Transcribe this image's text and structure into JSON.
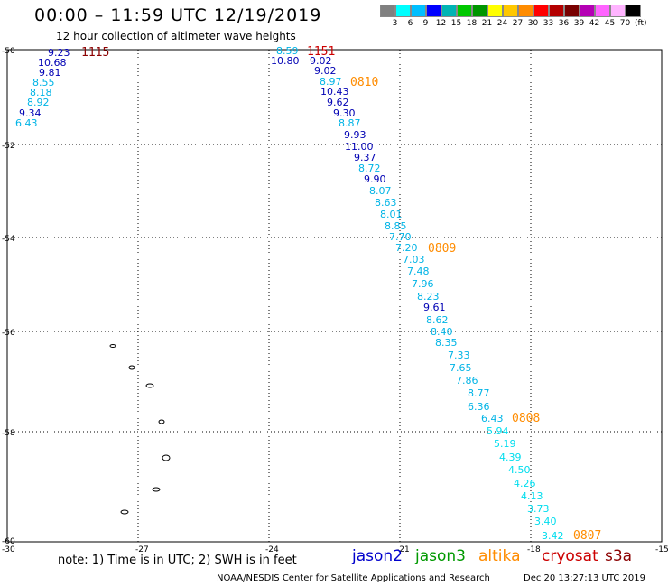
{
  "title": "00:00 – 11:59 UTC 12/19/2019",
  "subtitle": "12 hour collection of altimeter wave heights",
  "legend": {
    "unit": "(ft)",
    "colors": [
      "#808080",
      "#00ffff",
      "#00bfff",
      "#0000ff",
      "#00b4b4",
      "#00c800",
      "#009600",
      "#ffff00",
      "#ffc800",
      "#ff8c00",
      "#ff0000",
      "#b40000",
      "#780000",
      "#b400b4",
      "#ff64ff",
      "#ffb4ff",
      "#000000"
    ],
    "labels": [
      "3",
      "6",
      "9",
      "12",
      "15",
      "18",
      "21",
      "24",
      "27",
      "30",
      "33",
      "36",
      "39",
      "42",
      "45",
      "70"
    ]
  },
  "axes": {
    "x_ticks": [
      "-30",
      "-27",
      "-24",
      "-21",
      "-18",
      "-15"
    ],
    "y_ticks": [
      "-50",
      "-52",
      "-54",
      "-56",
      "-58",
      "-60"
    ]
  },
  "tracks": [
    {
      "pass_time": "1115",
      "values": [
        "9.23",
        "10.68",
        "9.81",
        "8.55",
        "8.18",
        "8.92",
        "9.34",
        "6.43"
      ]
    },
    {
      "pass_time": "1151",
      "values": [
        "8.59",
        "10.80"
      ]
    },
    {
      "pass_time": "0810",
      "values": [
        "9.02",
        "9.02",
        "8.97",
        "10.43",
        "9.62",
        "9.30",
        "8.87",
        "9.93",
        "11.00",
        "9.37",
        "8.72",
        "9.90",
        "8.07",
        "8.63",
        "8.01",
        "8.85",
        "7.70",
        "7.20"
      ]
    },
    {
      "pass_time": "0809",
      "values": [
        "7.03",
        "7.48",
        "7.96",
        "8.23",
        "9.61",
        "8.62",
        "8.40",
        "8.35",
        "7.33",
        "7.65",
        "7.86",
        "8.77",
        "6.36",
        "6.43"
      ]
    },
    {
      "pass_time": "0808",
      "values": [
        "5.94",
        "5.19",
        "4.39",
        "4.50",
        "4.26",
        "4.13",
        "3.73",
        "3.40",
        "3.42"
      ]
    },
    {
      "pass_time": "0807",
      "values": []
    }
  ],
  "note": "note:  1) Time is in UTC;  2) SWH is in feet",
  "satellites": [
    {
      "name": "jason2",
      "color": "#0000cc"
    },
    {
      "name": "jason3",
      "color": "#009900"
    },
    {
      "name": "altika",
      "color": "#ff8c00"
    },
    {
      "name": "cryosat",
      "color": "#cc0000"
    },
    {
      "name": "s3a",
      "color": "#8b0000"
    }
  ],
  "credit": "NOAA/NESDIS Center for Satellite Applications and Research",
  "stamp": "Dec 20 13:27:13 UTC 2019"
}
